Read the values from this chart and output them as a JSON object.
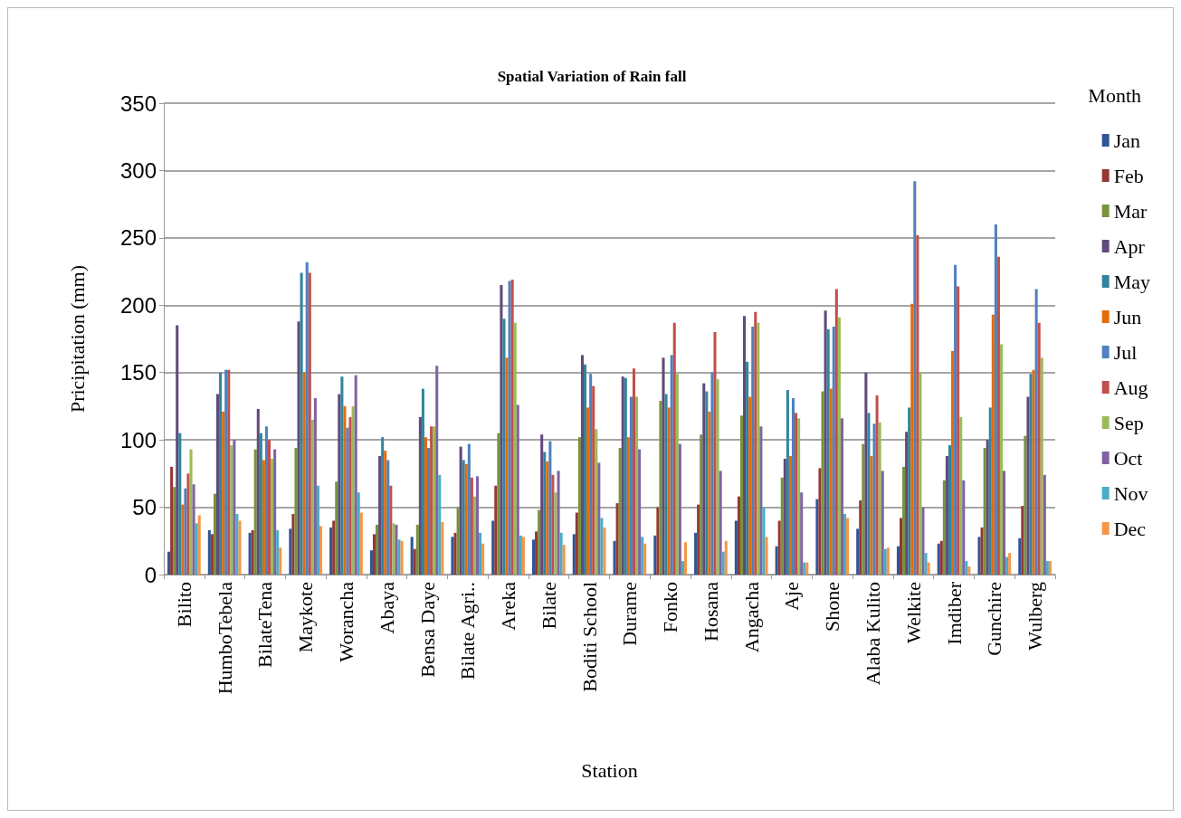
{
  "chart_data": {
    "type": "bar",
    "title": "Spatial Variation of Rain fall",
    "xlabel": "Station",
    "ylabel": "Pricipitation (mm)",
    "legend_title": "Month",
    "legend": "right",
    "grid": "y",
    "categories": [
      "Bilito",
      "HumboTebela",
      "BilateTena",
      "Maykote",
      "Worancha",
      "Abaya",
      "Bensa Daye",
      "Bilate Agri..",
      "Areka",
      "Bilate",
      "Boditi School",
      "Durame",
      "Fonko",
      "Hosana",
      "Angacha",
      "Aje",
      "Shone",
      "Alaba Kulito",
      "Welkite",
      "Imdiber",
      "Gunchire",
      "Wulberg"
    ],
    "ylim": [
      0,
      350
    ],
    "yticks": [
      0,
      50,
      100,
      150,
      200,
      250,
      300,
      350
    ],
    "series": [
      {
        "name": "Jan",
        "color": "#2f5597",
        "values": [
          17,
          33,
          31,
          34,
          35,
          18,
          28,
          28,
          40,
          26,
          30,
          25,
          29,
          31,
          40,
          21,
          56,
          34,
          21,
          23,
          28,
          27
        ]
      },
      {
        "name": "Feb",
        "color": "#953735",
        "values": [
          80,
          30,
          33,
          45,
          40,
          30,
          19,
          31,
          66,
          32,
          46,
          53,
          50,
          52,
          58,
          40,
          79,
          55,
          42,
          25,
          35,
          51
        ]
      },
      {
        "name": "Mar",
        "color": "#77933c",
        "values": [
          65,
          60,
          93,
          94,
          69,
          37,
          37,
          50,
          105,
          48,
          102,
          94,
          129,
          104,
          118,
          72,
          136,
          97,
          80,
          70,
          94,
          103
        ]
      },
      {
        "name": "Apr",
        "color": "#604a7b",
        "values": [
          185,
          134,
          123,
          188,
          134,
          88,
          117,
          95,
          215,
          104,
          163,
          147,
          161,
          142,
          192,
          86,
          196,
          150,
          106,
          88,
          100,
          132
        ]
      },
      {
        "name": "May",
        "color": "#31859c",
        "values": [
          105,
          150,
          105,
          224,
          147,
          102,
          138,
          85,
          190,
          91,
          156,
          146,
          134,
          136,
          158,
          137,
          182,
          120,
          124,
          96,
          124,
          149
        ]
      },
      {
        "name": "Jun",
        "color": "#e46c0a",
        "values": [
          52,
          121,
          85,
          150,
          125,
          92,
          102,
          82,
          161,
          84,
          124,
          102,
          124,
          121,
          132,
          88,
          138,
          88,
          201,
          166,
          193,
          152
        ]
      },
      {
        "name": "Jul",
        "color": "#4f81bd",
        "values": [
          64,
          152,
          110,
          232,
          109,
          85,
          94,
          97,
          218,
          99,
          149,
          132,
          163,
          150,
          184,
          131,
          184,
          112,
          292,
          230,
          260,
          212
        ]
      },
      {
        "name": "Aug",
        "color": "#c0504d",
        "values": [
          75,
          152,
          100,
          224,
          117,
          66,
          110,
          72,
          219,
          74,
          140,
          153,
          187,
          180,
          195,
          120,
          212,
          133,
          252,
          214,
          236,
          187
        ]
      },
      {
        "name": "Sep",
        "color": "#9bbb59",
        "values": [
          93,
          96,
          86,
          115,
          125,
          38,
          110,
          58,
          187,
          61,
          108,
          132,
          149,
          145,
          187,
          116,
          191,
          113,
          150,
          117,
          171,
          161
        ]
      },
      {
        "name": "Oct",
        "color": "#8064a2",
        "values": [
          67,
          100,
          93,
          131,
          148,
          37,
          155,
          73,
          126,
          77,
          83,
          93,
          97,
          77,
          110,
          61,
          116,
          77,
          50,
          70,
          77,
          74
        ]
      },
      {
        "name": "Nov",
        "color": "#4bacc6",
        "values": [
          38,
          45,
          33,
          66,
          61,
          26,
          74,
          31,
          29,
          31,
          42,
          28,
          10,
          17,
          50,
          9,
          45,
          19,
          16,
          10,
          13,
          10
        ]
      },
      {
        "name": "Dec",
        "color": "#f79646",
        "values": [
          44,
          40,
          20,
          36,
          46,
          25,
          39,
          23,
          28,
          22,
          35,
          23,
          24,
          25,
          28,
          9,
          42,
          20,
          9,
          6,
          16,
          10
        ]
      }
    ]
  }
}
